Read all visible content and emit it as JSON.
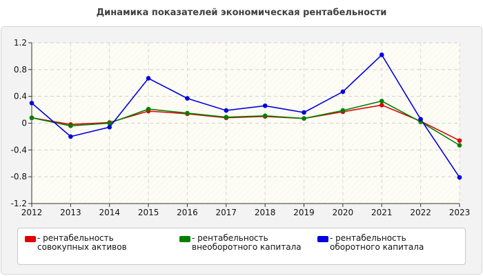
{
  "chart_data": {
    "type": "line",
    "title": "Динамика показателей экономическая рентабельности",
    "categories": [
      "2012",
      "2013",
      "2014",
      "2015",
      "2016",
      "2017",
      "2018",
      "2019",
      "2020",
      "2021",
      "2022",
      "2023"
    ],
    "ylim": [
      -1.2,
      1.2
    ],
    "yticks": [
      "1.2",
      "0.8",
      "0.4",
      "0",
      "-0.4",
      "-0.8",
      "-1.2"
    ],
    "grid": true,
    "legend_position": "bottom",
    "series": [
      {
        "name": "- рентабельность совокупных активов",
        "color": "#e00000",
        "values": [
          0.08,
          -0.02,
          0.01,
          0.18,
          0.14,
          0.08,
          0.1,
          0.07,
          0.17,
          0.27,
          0.03,
          -0.26
        ]
      },
      {
        "name": "- рентабельность внеоборотного капитала",
        "color": "#008000",
        "values": [
          0.08,
          -0.04,
          0.0,
          0.21,
          0.15,
          0.09,
          0.11,
          0.07,
          0.19,
          0.33,
          0.02,
          -0.33
        ]
      },
      {
        "name": "- рентабельность оборотного капитала",
        "color": "#0000e0",
        "values": [
          0.3,
          -0.2,
          -0.06,
          0.67,
          0.37,
          0.19,
          0.26,
          0.16,
          0.47,
          1.02,
          0.06,
          -0.81
        ]
      }
    ]
  }
}
